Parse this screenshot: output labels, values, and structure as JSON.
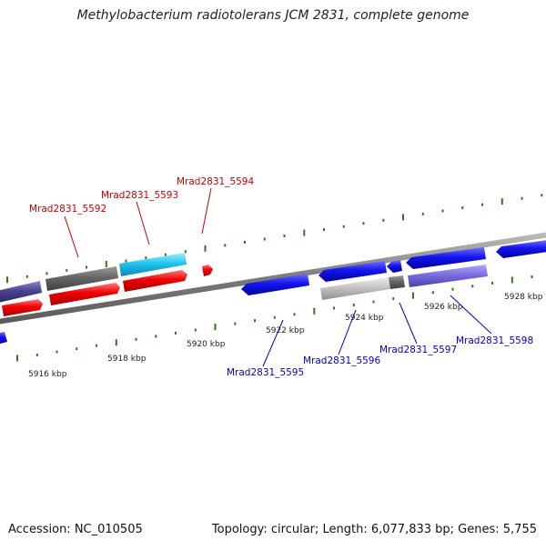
{
  "title": "Methylobacterium radiotolerans JCM 2831, complete genome",
  "footer": {
    "accession": "Accession: NC_010505",
    "summary": "Topology: circular; Length: 6,077,833 bp; Genes: 5,755"
  },
  "colors": {
    "backbone": "#7a7a7a",
    "tick": "#2a7a1a",
    "label_top": "#cc0000",
    "label_bottom": "#0000cc"
  },
  "tick_labels": [
    "5916 kbp",
    "5918 kbp",
    "5920 kbp",
    "5922 kbp",
    "5924 kbp",
    "5926 kbp",
    "5928 kbp"
  ],
  "gene_labels_top": [
    "Mrad2831_5592",
    "Mrad2831_5593",
    "Mrad2831_5594"
  ],
  "gene_labels_bottom": [
    "Mrad2831_5595",
    "Mrad2831_5596",
    "Mrad2831_5597",
    "Mrad2831_5598"
  ]
}
